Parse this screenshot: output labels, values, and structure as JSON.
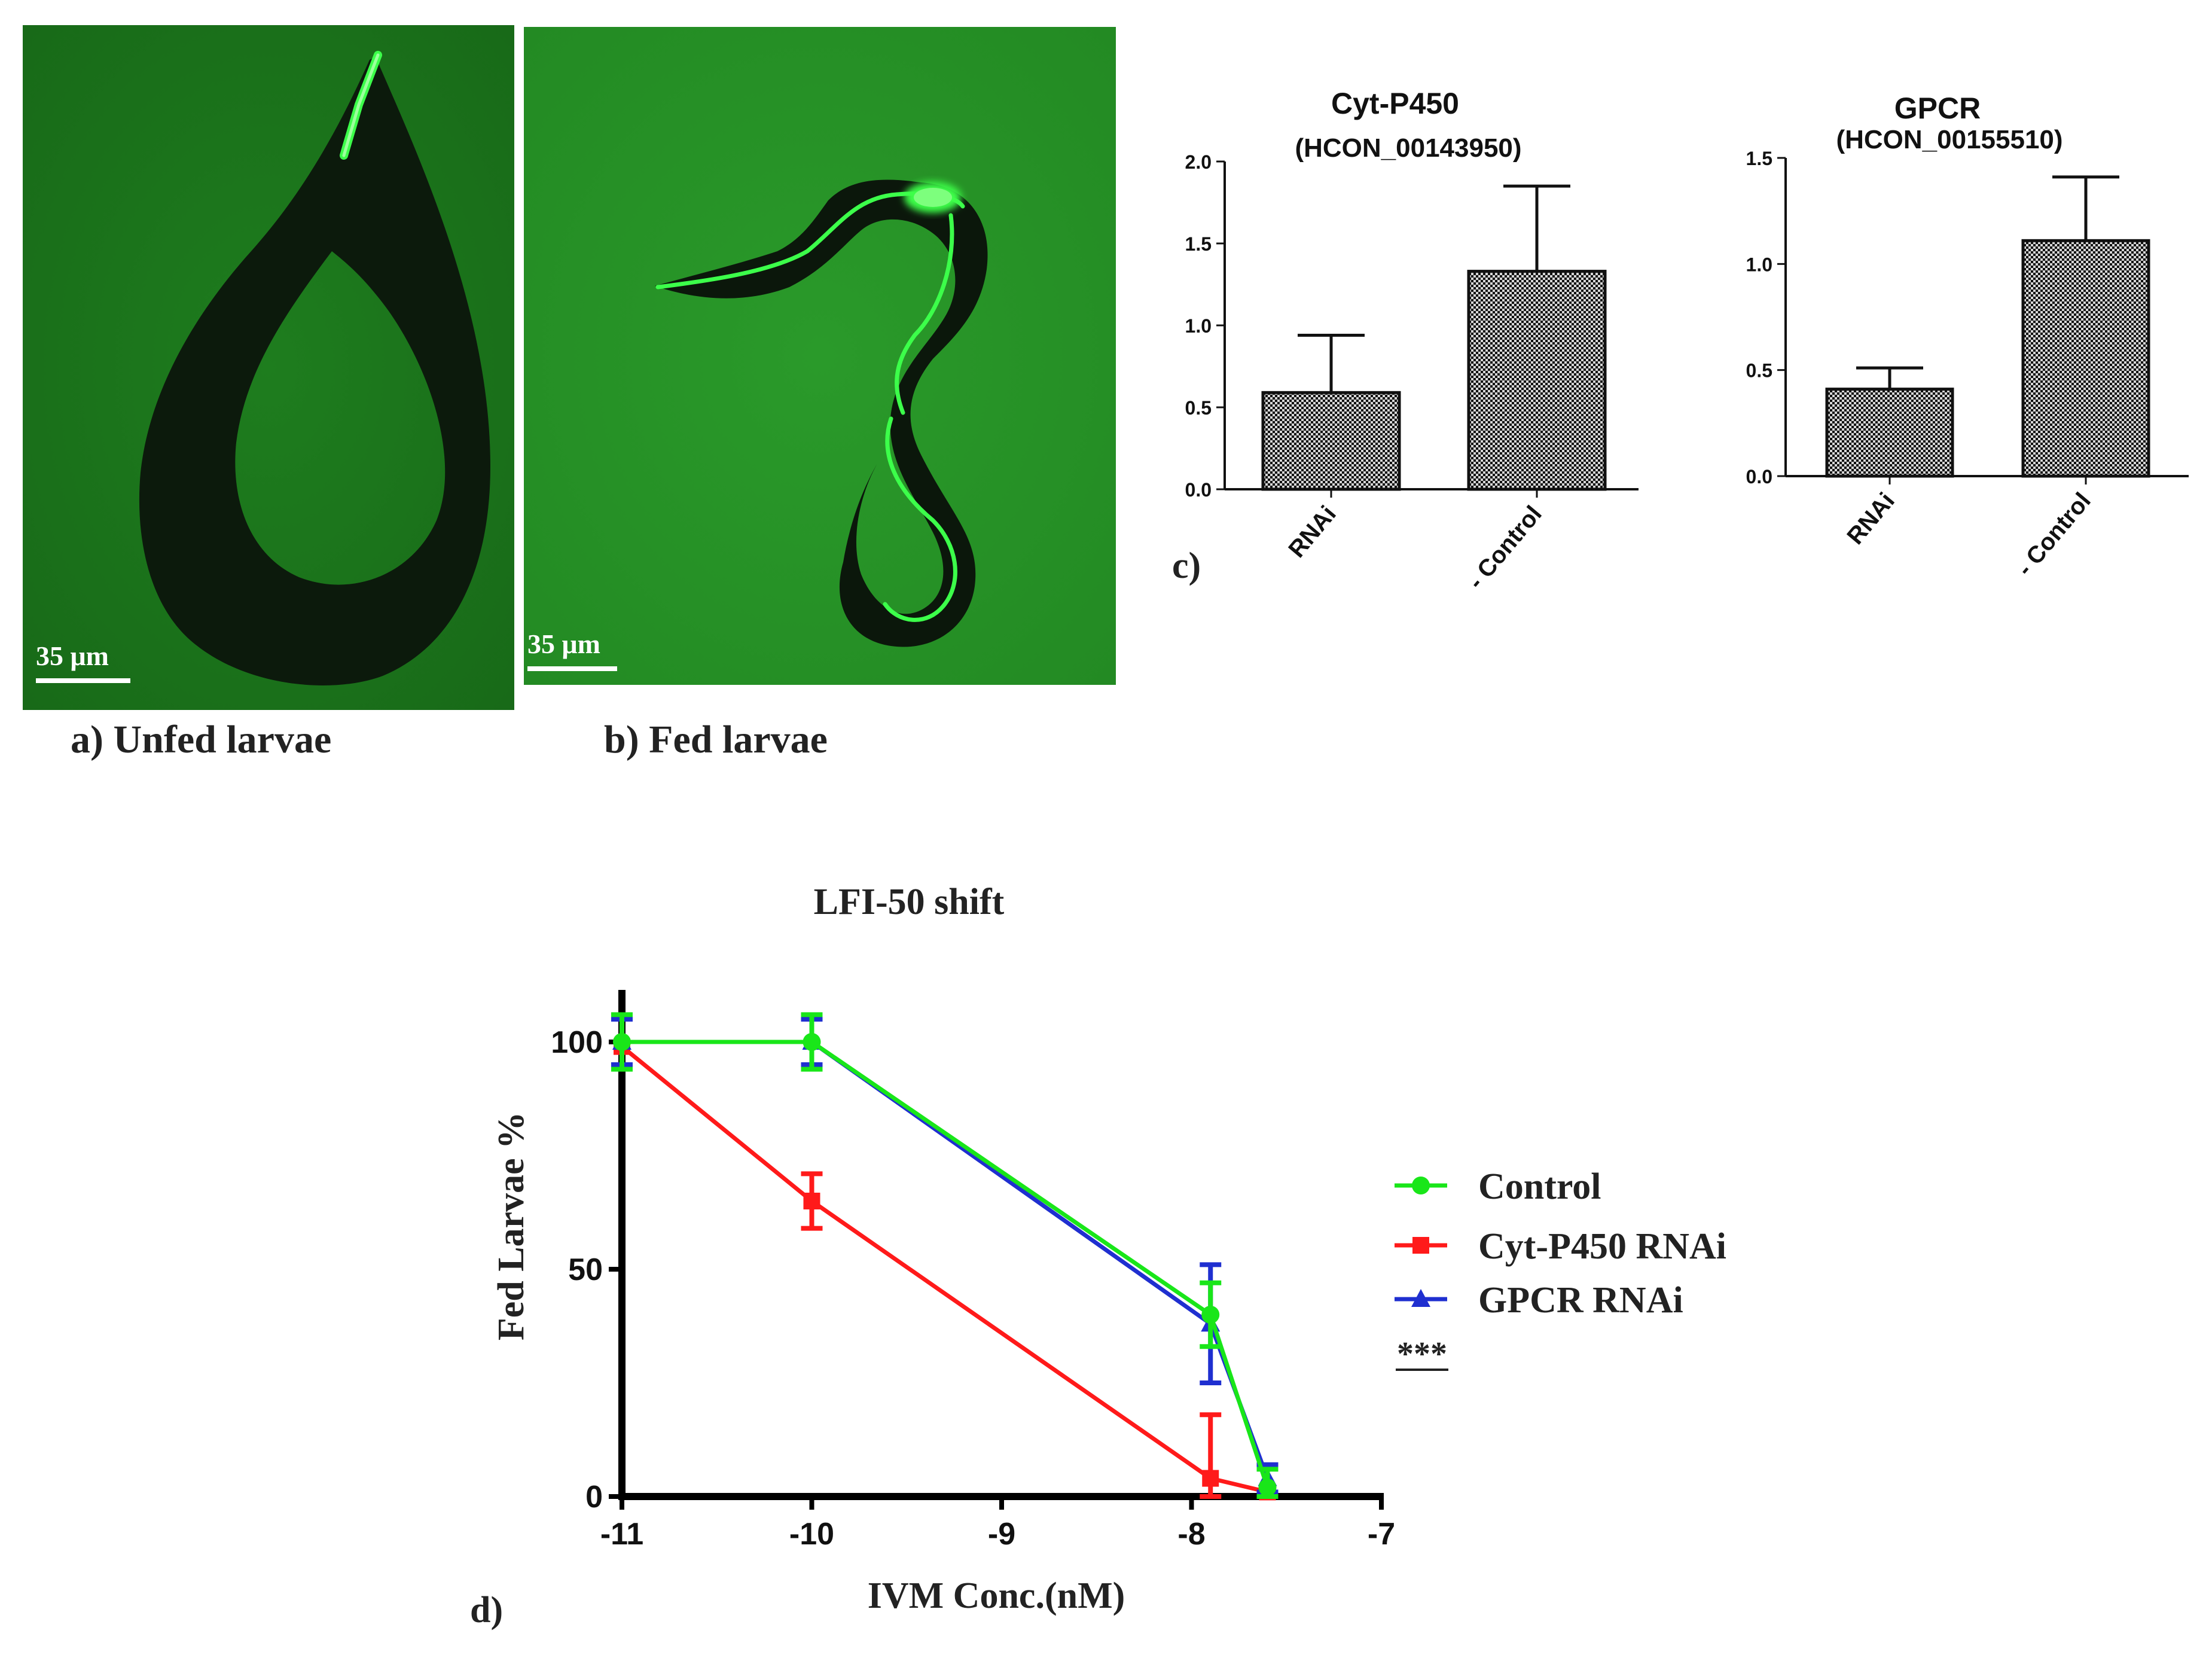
{
  "panels": {
    "a": {
      "caption": "a) Unfed larvae",
      "scale_label": "35 μm"
    },
    "b": {
      "caption": "b) Fed larvae",
      "scale_label": "35 μm"
    },
    "c": {
      "label": "c)"
    },
    "d": {
      "label": "d)"
    }
  },
  "colors": {
    "micrograph_bg": "#1f8a1f",
    "larva_body": "#0d160d",
    "gut_fluorescence": "#3cff4a",
    "control": "#19e619",
    "cyt_p450": "#ff1a1a",
    "gpcr": "#1f2fd0",
    "bar_pattern_dark": "#111111",
    "bar_pattern_light": "#cfcfcf"
  },
  "chart_data": [
    {
      "type": "bar",
      "title": "Cyt-P450",
      "subtitle": "(HCON_00143950)",
      "categories": [
        "RNAi",
        "- Control"
      ],
      "values": [
        0.59,
        1.33
      ],
      "errors": [
        0.35,
        0.52
      ],
      "ylim": [
        0.0,
        2.0
      ],
      "yticks": [
        "0.0",
        "0.5",
        "1.0",
        "1.5",
        "2.0"
      ],
      "xlabel": "",
      "ylabel": ""
    },
    {
      "type": "bar",
      "title": "GPCR",
      "subtitle": "(HCON_00155510)",
      "categories": [
        "RNAi",
        "- Control"
      ],
      "values": [
        0.41,
        1.11
      ],
      "errors": [
        0.1,
        0.3
      ],
      "ylim": [
        0.0,
        1.5
      ],
      "yticks": [
        "0.0",
        "0.5",
        "1.0",
        "1.5"
      ],
      "xlabel": "",
      "ylabel": ""
    },
    {
      "type": "line",
      "title": "LFI-50 shift",
      "xlabel": "IVM Conc.(nM)",
      "ylabel": "Fed Larvae %",
      "xlim": [
        -11,
        -7
      ],
      "ylim": [
        0,
        100
      ],
      "xticks": [
        "-11",
        "-10",
        "-9",
        "-8",
        "-7"
      ],
      "yticks": [
        "0",
        "50",
        "100"
      ],
      "legend_position": "right",
      "significance": "***",
      "series": [
        {
          "name": "Control",
          "marker": "circle",
          "x": [
            -11,
            -10,
            -7.9,
            -7.6
          ],
          "y": [
            100,
            100,
            40,
            2
          ],
          "err": [
            6,
            6,
            7,
            4
          ]
        },
        {
          "name": "Cyt-P450 RNAi",
          "marker": "square",
          "x": [
            -11,
            -10,
            -7.9,
            -7.6
          ],
          "y": [
            99,
            65,
            4,
            1
          ],
          "err": [
            0,
            6,
            14,
            0
          ]
        },
        {
          "name": "GPCR RNAi",
          "marker": "triangle",
          "x": [
            -11,
            -10,
            -7.9,
            -7.6
          ],
          "y": [
            100,
            100,
            38,
            4
          ],
          "err": [
            5,
            5,
            13,
            3
          ]
        }
      ]
    }
  ]
}
